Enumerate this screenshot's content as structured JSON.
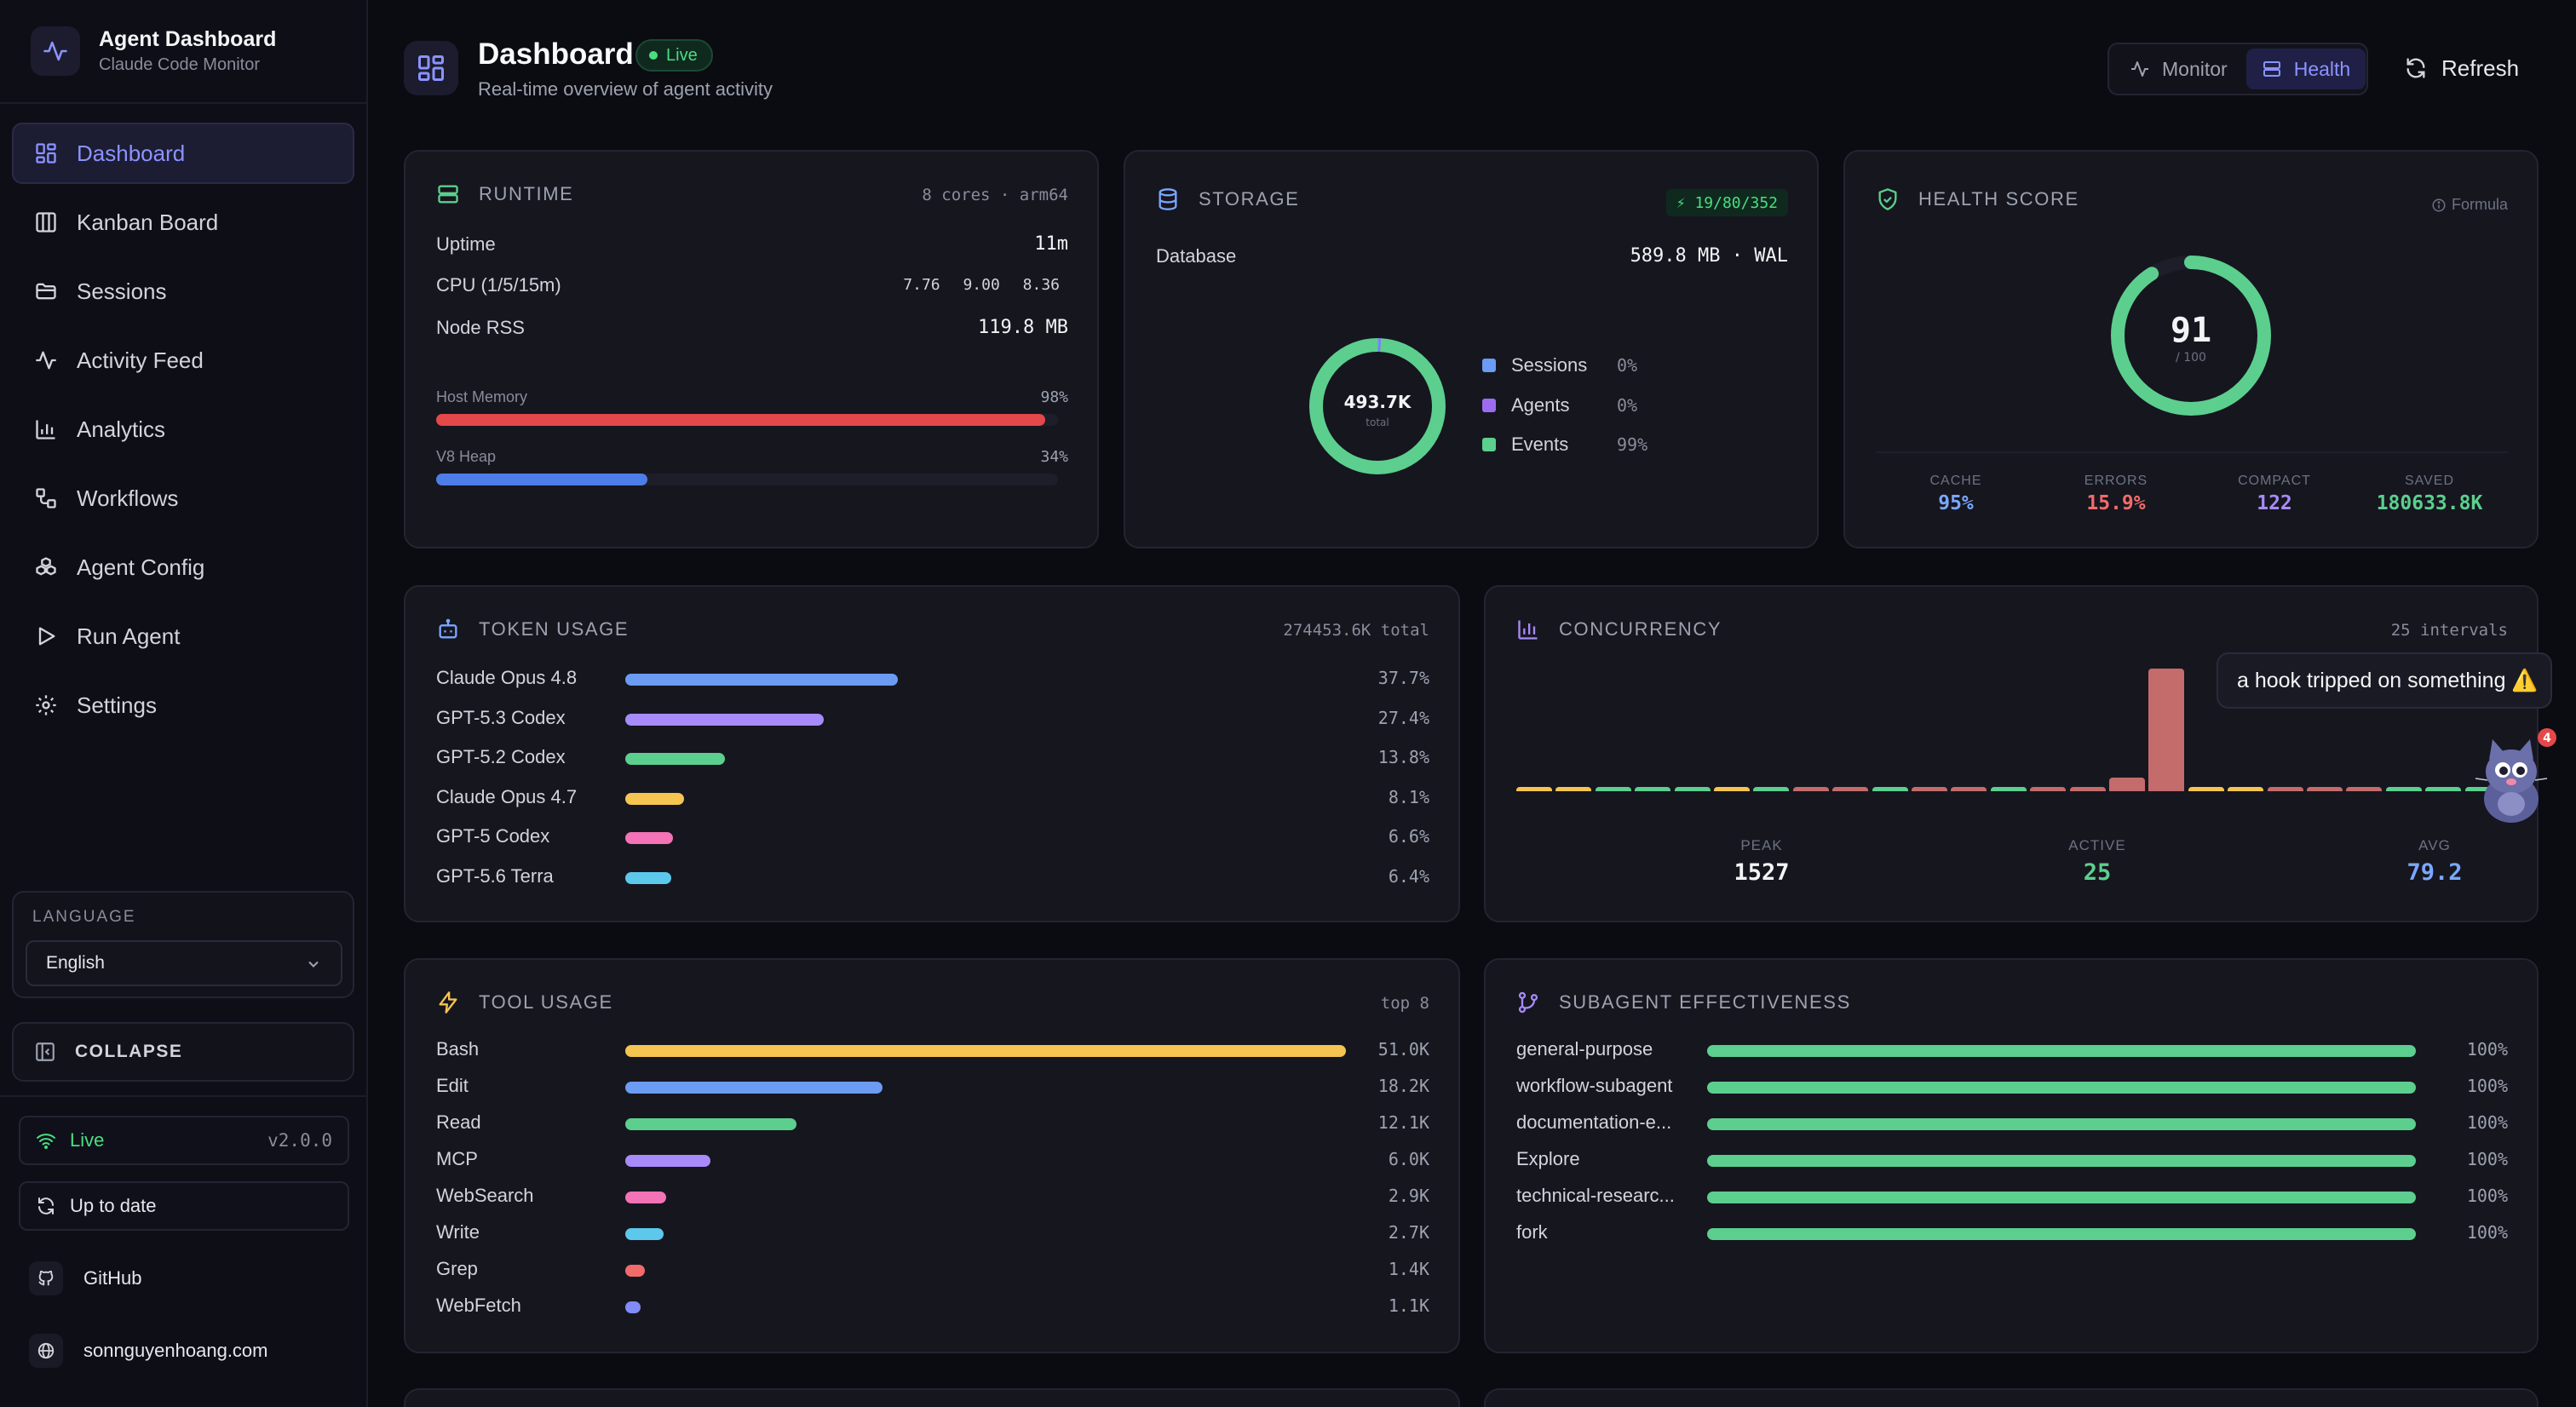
{
  "sidebar": {
    "app_title": "Agent Dashboard",
    "app_subtitle": "Claude Code Monitor",
    "nav": [
      {
        "label": "Dashboard",
        "icon": "grid-icon"
      },
      {
        "label": "Kanban Board",
        "icon": "columns-icon"
      },
      {
        "label": "Sessions",
        "icon": "folder-icon"
      },
      {
        "label": "Activity Feed",
        "icon": "activity-icon"
      },
      {
        "label": "Analytics",
        "icon": "bar-chart-icon"
      },
      {
        "label": "Workflows",
        "icon": "workflow-icon"
      },
      {
        "label": "Agent Config",
        "icon": "boxes-icon"
      },
      {
        "label": "Run Agent",
        "icon": "play-icon"
      },
      {
        "label": "Settings",
        "icon": "gear-icon"
      }
    ],
    "language_label": "LANGUAGE",
    "language_value": "English",
    "collapse_label": "COLLAPSE",
    "live_label": "Live",
    "version": "v2.0.0",
    "update_label": "Up to date",
    "github_label": "GitHub",
    "website_label": "sonnguyenhoang.com"
  },
  "header": {
    "title": "Dashboard",
    "live_badge": "Live",
    "subtitle": "Real-time overview of agent activity",
    "toggle_monitor": "Monitor",
    "toggle_health": "Health",
    "refresh": "Refresh"
  },
  "runtime": {
    "title": "RUNTIME",
    "meta": "8 cores · arm64",
    "uptime_label": "Uptime",
    "uptime": "11m",
    "cpu_label": "CPU (1/5/15m)",
    "cpu": "7.76 9.00 8.36",
    "rss_label": "Node RSS",
    "rss": "119.8 MB",
    "host_mem_label": "Host Memory",
    "host_mem_pct": "98%",
    "host_mem_fraction": 0.98,
    "heap_label": "V8 Heap",
    "heap_pct": "34%",
    "heap_fraction": 0.34
  },
  "storage": {
    "title": "STORAGE",
    "badge": "⚡ 19/80/352",
    "db_label": "Database",
    "db_value": "589.8 MB · WAL",
    "donut_value": "493.7K",
    "donut_caption": "total",
    "legend": [
      {
        "name": "Sessions",
        "pct": "0%",
        "color": "#6b9bf2",
        "share": 0.004
      },
      {
        "name": "Agents",
        "pct": "0%",
        "color": "#9b6cf0",
        "share": 0.004
      },
      {
        "name": "Events",
        "pct": "99%",
        "color": "#5ccf8e",
        "share": 0.992
      }
    ]
  },
  "health": {
    "title": "HEALTH SCORE",
    "formula": "Formula",
    "score": "91",
    "score_max": "/ 100",
    "score_fraction": 0.91,
    "stats": [
      {
        "label": "CACHE",
        "value": "95%",
        "color": "#7aa7ff"
      },
      {
        "label": "ERRORS",
        "value": "15.9%",
        "color": "#f26b6b"
      },
      {
        "label": "COMPACT",
        "value": "122",
        "color": "#a78bfa"
      },
      {
        "label": "SAVED",
        "value": "180633.8K",
        "color": "#5ccf8e"
      }
    ]
  },
  "tokens": {
    "title": "TOKEN USAGE",
    "meta": "274453.6K total",
    "rows": [
      {
        "name": "Claude Opus 4.8",
        "pct": "37.7%",
        "share": 0.377,
        "color": "#6b9bf2"
      },
      {
        "name": "GPT-5.3 Codex",
        "pct": "27.4%",
        "share": 0.274,
        "color": "#a78bfa"
      },
      {
        "name": "GPT-5.2 Codex",
        "pct": "13.8%",
        "share": 0.138,
        "color": "#5ccf8e"
      },
      {
        "name": "Claude Opus 4.7",
        "pct": "8.1%",
        "share": 0.081,
        "color": "#f5c451"
      },
      {
        "name": "GPT-5 Codex",
        "pct": "6.6%",
        "share": 0.066,
        "color": "#f472b6"
      },
      {
        "name": "GPT-5.6 Terra",
        "pct": "6.4%",
        "share": 0.064,
        "color": "#5cc8ec"
      }
    ]
  },
  "concurrency": {
    "title": "CONCURRENCY",
    "meta": "25 intervals",
    "peak_label": "PEAK",
    "peak": "1527",
    "active_label": "ACTIVE",
    "active": "25",
    "avg_label": "AVG",
    "avg": "79.2",
    "bars": [
      {
        "v": 20,
        "c": "#f5c451"
      },
      {
        "v": 20,
        "c": "#f5c451"
      },
      {
        "v": 20,
        "c": "#5ccf8e"
      },
      {
        "v": 20,
        "c": "#5ccf8e"
      },
      {
        "v": 20,
        "c": "#5ccf8e"
      },
      {
        "v": 20,
        "c": "#f5c451"
      },
      {
        "v": 20,
        "c": "#5ccf8e"
      },
      {
        "v": 20,
        "c": "#c46b6b"
      },
      {
        "v": 20,
        "c": "#c46b6b"
      },
      {
        "v": 20,
        "c": "#5ccf8e"
      },
      {
        "v": 20,
        "c": "#c46b6b"
      },
      {
        "v": 20,
        "c": "#c46b6b"
      },
      {
        "v": 20,
        "c": "#5ccf8e"
      },
      {
        "v": 20,
        "c": "#c46b6b"
      },
      {
        "v": 20,
        "c": "#c46b6b"
      },
      {
        "v": 170,
        "c": "#c46b6b"
      },
      {
        "v": 1527,
        "c": "#c46b6b"
      },
      {
        "v": 20,
        "c": "#f5c451"
      },
      {
        "v": 20,
        "c": "#f5c451"
      },
      {
        "v": 20,
        "c": "#c46b6b"
      },
      {
        "v": 20,
        "c": "#c46b6b"
      },
      {
        "v": 20,
        "c": "#c46b6b"
      },
      {
        "v": 20,
        "c": "#5ccf8e"
      },
      {
        "v": 20,
        "c": "#5ccf8e"
      },
      {
        "v": 20,
        "c": "#5ccf8e"
      }
    ]
  },
  "toast": {
    "text": "a hook tripped on something ⚠️",
    "badge": "4"
  },
  "tools": {
    "title": "TOOL USAGE",
    "meta": "top 8",
    "rows": [
      {
        "name": "Bash",
        "value": "51.0K",
        "n": 51.0,
        "color": "#f5c451"
      },
      {
        "name": "Edit",
        "value": "18.2K",
        "n": 18.2,
        "color": "#6b9bf2"
      },
      {
        "name": "Read",
        "value": "12.1K",
        "n": 12.1,
        "color": "#5ccf8e"
      },
      {
        "name": "MCP",
        "value": "6.0K",
        "n": 6.0,
        "color": "#a78bfa"
      },
      {
        "name": "WebSearch",
        "value": "2.9K",
        "n": 2.9,
        "color": "#f472b6"
      },
      {
        "name": "Write",
        "value": "2.7K",
        "n": 2.7,
        "color": "#5cc8ec"
      },
      {
        "name": "Grep",
        "value": "1.4K",
        "n": 1.4,
        "color": "#f26b6b"
      },
      {
        "name": "WebFetch",
        "value": "1.1K",
        "n": 1.1,
        "color": "#818cf8"
      }
    ]
  },
  "subagents": {
    "title": "SUBAGENT EFFECTIVENESS",
    "rows": [
      {
        "name": "general-purpose",
        "pct": "100%",
        "share": 1.0
      },
      {
        "name": "workflow-subagent",
        "pct": "100%",
        "share": 1.0
      },
      {
        "name": "documentation-e...",
        "pct": "100%",
        "share": 1.0
      },
      {
        "name": "Explore",
        "pct": "100%",
        "share": 1.0
      },
      {
        "name": "technical-researc...",
        "pct": "100%",
        "share": 1.0
      },
      {
        "name": "fork",
        "pct": "100%",
        "share": 1.0
      }
    ]
  }
}
